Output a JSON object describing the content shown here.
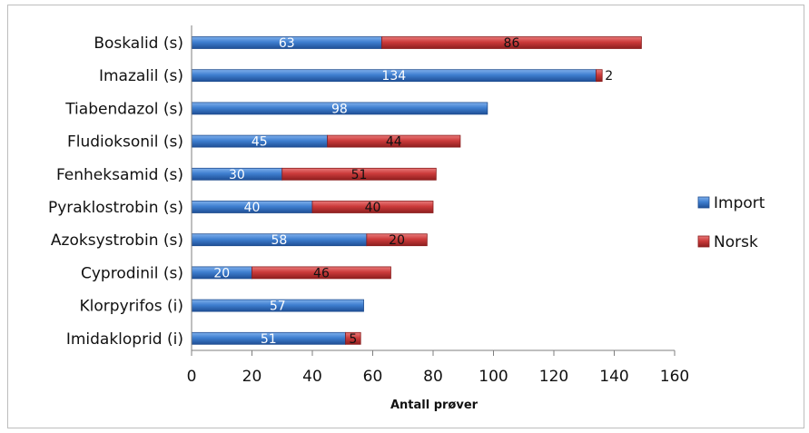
{
  "chart_data": {
    "type": "bar",
    "orientation": "horizontal",
    "stacked": true,
    "categories": [
      "Boskalid (s)",
      "Imazalil (s)",
      "Tiabendazol (s)",
      "Fludioksonil (s)",
      "Fenheksamid (s)",
      "Pyraklostrobin (s)",
      "Azoksystrobin (s)",
      "Cyprodinil (s)",
      "Klorpyrifos (i)",
      "Imidakloprid (i)"
    ],
    "series": [
      {
        "name": "Import",
        "values": [
          63,
          134,
          98,
          45,
          30,
          40,
          58,
          20,
          57,
          51
        ],
        "color": "#3f7fd0"
      },
      {
        "name": "Norsk",
        "values": [
          86,
          2,
          0,
          44,
          51,
          40,
          20,
          46,
          0,
          5
        ],
        "color": "#cc3b3b"
      }
    ],
    "xlabel": "Antall prøver",
    "ylabel": "",
    "xlim": [
      0,
      160
    ],
    "xticks": [
      0,
      20,
      40,
      60,
      80,
      100,
      120,
      140,
      160
    ],
    "grid": false,
    "legend_position": "right"
  }
}
